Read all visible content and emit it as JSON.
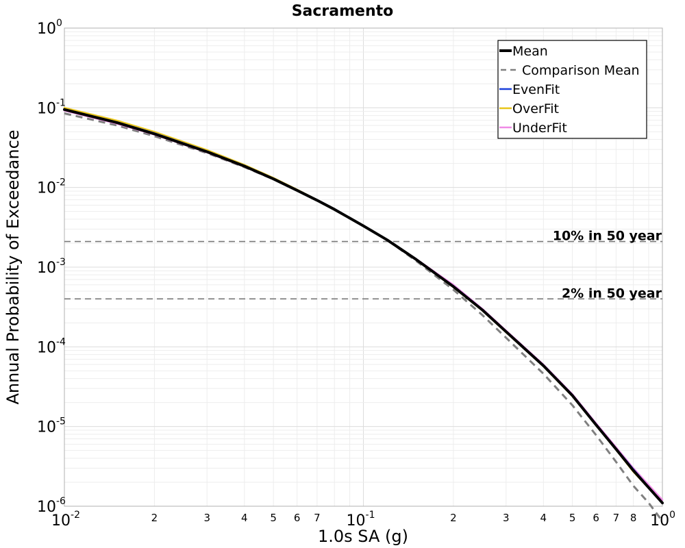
{
  "chart_data": {
    "type": "line",
    "title": "Sacramento",
    "xlabel": "1.0s SA (g)",
    "ylabel": "Annual Probability of Exceedance",
    "xscale": "log",
    "yscale": "log",
    "xlim": [
      0.01,
      1
    ],
    "ylim": [
      1e-06,
      1
    ],
    "grid": true,
    "legend_position": "top-right",
    "x_major_ticks": [
      {
        "value": 0.01,
        "base": "10",
        "exp": "-2"
      },
      {
        "value": 0.1,
        "base": "10",
        "exp": "-1"
      },
      {
        "value": 1,
        "base": "10",
        "exp": "0"
      }
    ],
    "x_minor_ticks": [
      {
        "value": 0.02,
        "label": "2"
      },
      {
        "value": 0.03,
        "label": "3"
      },
      {
        "value": 0.04,
        "label": "4"
      },
      {
        "value": 0.05,
        "label": "5"
      },
      {
        "value": 0.06,
        "label": "6"
      },
      {
        "value": 0.07,
        "label": "7"
      },
      {
        "value": 0.2,
        "label": "2"
      },
      {
        "value": 0.3,
        "label": "3"
      },
      {
        "value": 0.4,
        "label": "4"
      },
      {
        "value": 0.5,
        "label": "5"
      },
      {
        "value": 0.6,
        "label": "6"
      },
      {
        "value": 0.7,
        "label": "7"
      },
      {
        "value": 0.8,
        "label": "8"
      }
    ],
    "y_major_ticks": [
      {
        "value": 1,
        "base": "10",
        "exp": "0"
      },
      {
        "value": 0.1,
        "base": "10",
        "exp": "-1"
      },
      {
        "value": 0.01,
        "base": "10",
        "exp": "-2"
      },
      {
        "value": 0.001,
        "base": "10",
        "exp": "-3"
      },
      {
        "value": 0.0001,
        "base": "10",
        "exp": "-4"
      },
      {
        "value": 1e-05,
        "base": "10",
        "exp": "-5"
      },
      {
        "value": 1e-06,
        "base": "10",
        "exp": "-6"
      }
    ],
    "reference_lines": [
      {
        "label": "10% in 50 year",
        "y": 0.0021,
        "color": "#777777",
        "dash": "dashed"
      },
      {
        "label": "2% in 50 year",
        "y": 0.0004,
        "color": "#777777",
        "dash": "dashed"
      }
    ],
    "series": [
      {
        "name": "Mean",
        "color": "#000000",
        "width": 4,
        "dash": "solid",
        "x": [
          0.01,
          0.015,
          0.02,
          0.03,
          0.04,
          0.05,
          0.06,
          0.07,
          0.08,
          0.1,
          0.12,
          0.15,
          0.2,
          0.25,
          0.3,
          0.4,
          0.5,
          0.6,
          0.7,
          0.8,
          1.0
        ],
        "y": [
          0.095,
          0.065,
          0.047,
          0.028,
          0.0185,
          0.0128,
          0.0092,
          0.0069,
          0.0053,
          0.0033,
          0.0022,
          0.00125,
          0.00057,
          0.00029,
          0.000155,
          5.8e-05,
          2.45e-05,
          1.05e-05,
          5.2e-06,
          2.8e-06,
          1.1e-06
        ]
      },
      {
        "name": "Comparison Mean",
        "color": "#808080",
        "width": 3,
        "dash": "dashed",
        "x": [
          0.01,
          0.015,
          0.02,
          0.03,
          0.04,
          0.05,
          0.06,
          0.07,
          0.08,
          0.1,
          0.12,
          0.15,
          0.2,
          0.25,
          0.3,
          0.4,
          0.5,
          0.6,
          0.7,
          0.8,
          0.9,
          1.0
        ],
        "y": [
          0.085,
          0.06,
          0.044,
          0.027,
          0.018,
          0.0127,
          0.0092,
          0.0069,
          0.0053,
          0.0033,
          0.0022,
          0.0012,
          0.00052,
          0.00025,
          0.00013,
          4.6e-05,
          1.85e-05,
          7.8e-06,
          3.6e-06,
          1.8e-06,
          1.1e-06,
          6.5e-07
        ]
      },
      {
        "name": "EvenFit",
        "color": "#1a3fdb",
        "width": 2.5,
        "dash": "solid",
        "x": [
          0.01,
          0.015,
          0.02,
          0.03,
          0.04,
          0.05,
          0.06,
          0.07,
          0.08,
          0.1,
          0.12,
          0.15,
          0.2,
          0.25,
          0.3,
          0.4,
          0.5,
          0.6,
          0.7,
          0.8,
          1.0
        ],
        "y": [
          0.096,
          0.066,
          0.048,
          0.0285,
          0.0188,
          0.013,
          0.0093,
          0.007,
          0.0054,
          0.0033,
          0.0022,
          0.00125,
          0.00058,
          0.000295,
          0.000157,
          5.9e-05,
          2.5e-05,
          1.07e-05,
          5.3e-06,
          2.9e-06,
          1.1e-06
        ]
      },
      {
        "name": "OverFit",
        "color": "#e8c51a",
        "width": 2.5,
        "dash": "solid",
        "x": [
          0.01,
          0.015,
          0.02,
          0.03,
          0.04,
          0.05,
          0.06,
          0.07,
          0.08,
          0.1,
          0.12,
          0.15,
          0.2,
          0.25,
          0.3,
          0.4,
          0.5,
          0.6,
          0.7,
          0.8,
          1.0
        ],
        "y": [
          0.1,
          0.069,
          0.05,
          0.0295,
          0.0192,
          0.0132,
          0.0094,
          0.007,
          0.0054,
          0.0033,
          0.0022,
          0.00124,
          0.00056,
          0.000285,
          0.000152,
          5.7e-05,
          2.4e-05,
          1.03e-05,
          5.1e-06,
          2.7e-06,
          1.1e-06
        ]
      },
      {
        "name": "UnderFit",
        "color": "#f08ae6",
        "width": 2.5,
        "dash": "solid",
        "x": [
          0.01,
          0.015,
          0.02,
          0.03,
          0.04,
          0.05,
          0.06,
          0.07,
          0.08,
          0.1,
          0.12,
          0.15,
          0.2,
          0.25,
          0.3,
          0.4,
          0.5,
          0.6,
          0.7,
          0.8,
          1.0
        ],
        "y": [
          0.092,
          0.063,
          0.046,
          0.0275,
          0.0182,
          0.0127,
          0.0092,
          0.0069,
          0.0053,
          0.0033,
          0.0022,
          0.00127,
          0.0006,
          0.0003,
          0.00016,
          6e-05,
          2.55e-05,
          1.1e-05,
          5.5e-06,
          3e-06,
          1.2e-06
        ]
      }
    ]
  }
}
